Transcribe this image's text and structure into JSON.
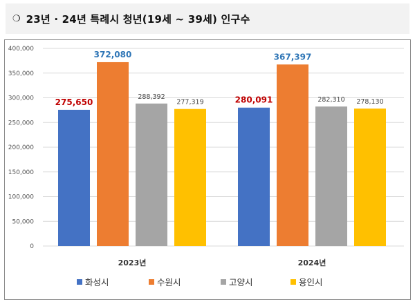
{
  "header": {
    "bullet": "❍",
    "title": "23년 · 24년 특례시 청년(19세 ~ 39세) 인구수"
  },
  "chart_data": {
    "type": "bar",
    "categories": [
      "2023년",
      "2024년"
    ],
    "series": [
      {
        "name": "화성시",
        "values": [
          275650,
          280091
        ],
        "labels": [
          "275,650",
          "280,091"
        ],
        "color": "#4472c4",
        "label_color": "#c00000",
        "label_bold": true
      },
      {
        "name": "수원시",
        "values": [
          372080,
          367397
        ],
        "labels": [
          "372,080",
          "367,397"
        ],
        "color": "#ed7d31",
        "label_color": "#2e75b6",
        "label_bold": true
      },
      {
        "name": "고양시",
        "values": [
          288392,
          282310
        ],
        "labels": [
          "288,392",
          "282,310"
        ],
        "color": "#a5a5a5",
        "label_color": "#444444",
        "label_bold": false
      },
      {
        "name": "용인시",
        "values": [
          277319,
          278130
        ],
        "labels": [
          "277,319",
          "278,130"
        ],
        "color": "#ffc000",
        "label_color": "#444444",
        "label_bold": false
      }
    ],
    "yticks": [
      "0",
      "50,000",
      "100,000",
      "150,000",
      "200,000",
      "250,000",
      "300,000",
      "350,000",
      "400,000"
    ],
    "ylim": [
      0,
      400000
    ],
    "grid": true,
    "legend_position": "bottom"
  }
}
